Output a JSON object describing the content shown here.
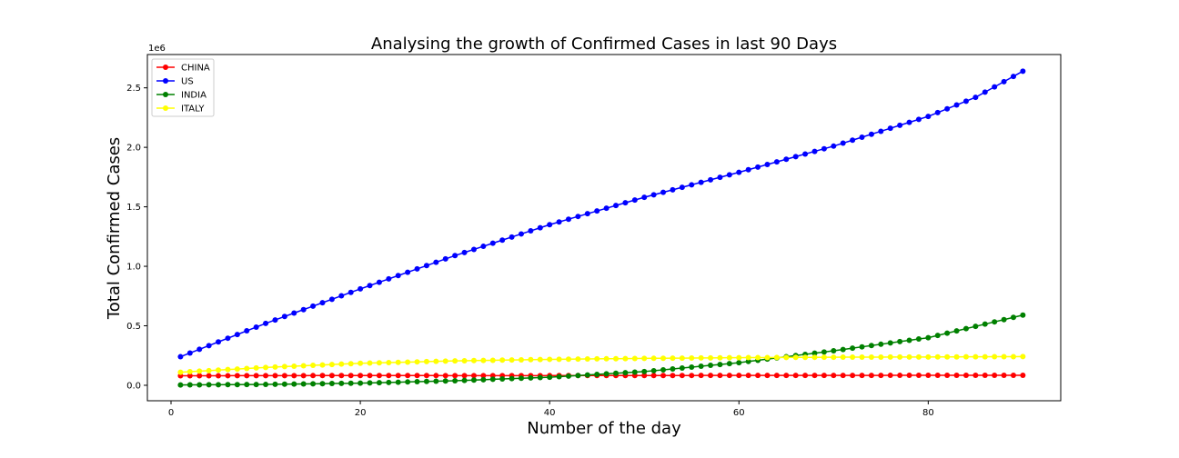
{
  "chart_data": {
    "type": "line",
    "title": "Analysing the growth of Confirmed Cases in last 90 Days",
    "xlabel": "Number of the day",
    "ylabel": "Total Confirmed Cases",
    "y_offset_label": "1e6",
    "xlim": [
      -2.5,
      94
    ],
    "ylim": [
      -0.13,
      2.78
    ],
    "x_ticks": [
      0,
      20,
      40,
      60,
      80
    ],
    "x_tick_labels": [
      "0",
      "20",
      "40",
      "60",
      "80"
    ],
    "y_ticks": [
      0.0,
      0.5,
      1.0,
      1.5,
      2.0,
      2.5
    ],
    "y_tick_labels": [
      "0.0",
      "0.5",
      "1.0",
      "1.5",
      "2.0",
      "2.5"
    ],
    "y_units_multiplier": 1000000,
    "grid": false,
    "legend_position": "top-left",
    "marker": "circle",
    "x_range": [
      1,
      90
    ],
    "series": [
      {
        "name": "CHINA",
        "color": "#ff0000",
        "anchors": [
          [
            1,
            0.08
          ],
          [
            20,
            0.082
          ],
          [
            35,
            0.081
          ],
          [
            45,
            0.082
          ],
          [
            90,
            0.084
          ]
        ]
      },
      {
        "name": "US",
        "color": "#0000ff",
        "anchors": [
          [
            1,
            0.24
          ],
          [
            10,
            0.52
          ],
          [
            20,
            0.81
          ],
          [
            30,
            1.09
          ],
          [
            40,
            1.35
          ],
          [
            50,
            1.58
          ],
          [
            60,
            1.79
          ],
          [
            70,
            2.01
          ],
          [
            80,
            2.26
          ],
          [
            85,
            2.42
          ],
          [
            90,
            2.64
          ]
        ]
      },
      {
        "name": "INDIA",
        "color": "#008000",
        "anchors": [
          [
            1,
            0.003
          ],
          [
            10,
            0.007
          ],
          [
            20,
            0.018
          ],
          [
            30,
            0.038
          ],
          [
            40,
            0.068
          ],
          [
            50,
            0.115
          ],
          [
            60,
            0.19
          ],
          [
            70,
            0.29
          ],
          [
            80,
            0.4
          ],
          [
            90,
            0.59
          ]
        ]
      },
      {
        "name": "ITALY",
        "color": "#ffff00",
        "anchors": [
          [
            1,
            0.11
          ],
          [
            10,
            0.15
          ],
          [
            20,
            0.185
          ],
          [
            30,
            0.205
          ],
          [
            40,
            0.218
          ],
          [
            50,
            0.226
          ],
          [
            60,
            0.232
          ],
          [
            70,
            0.236
          ],
          [
            80,
            0.238
          ],
          [
            90,
            0.241
          ]
        ]
      }
    ]
  }
}
